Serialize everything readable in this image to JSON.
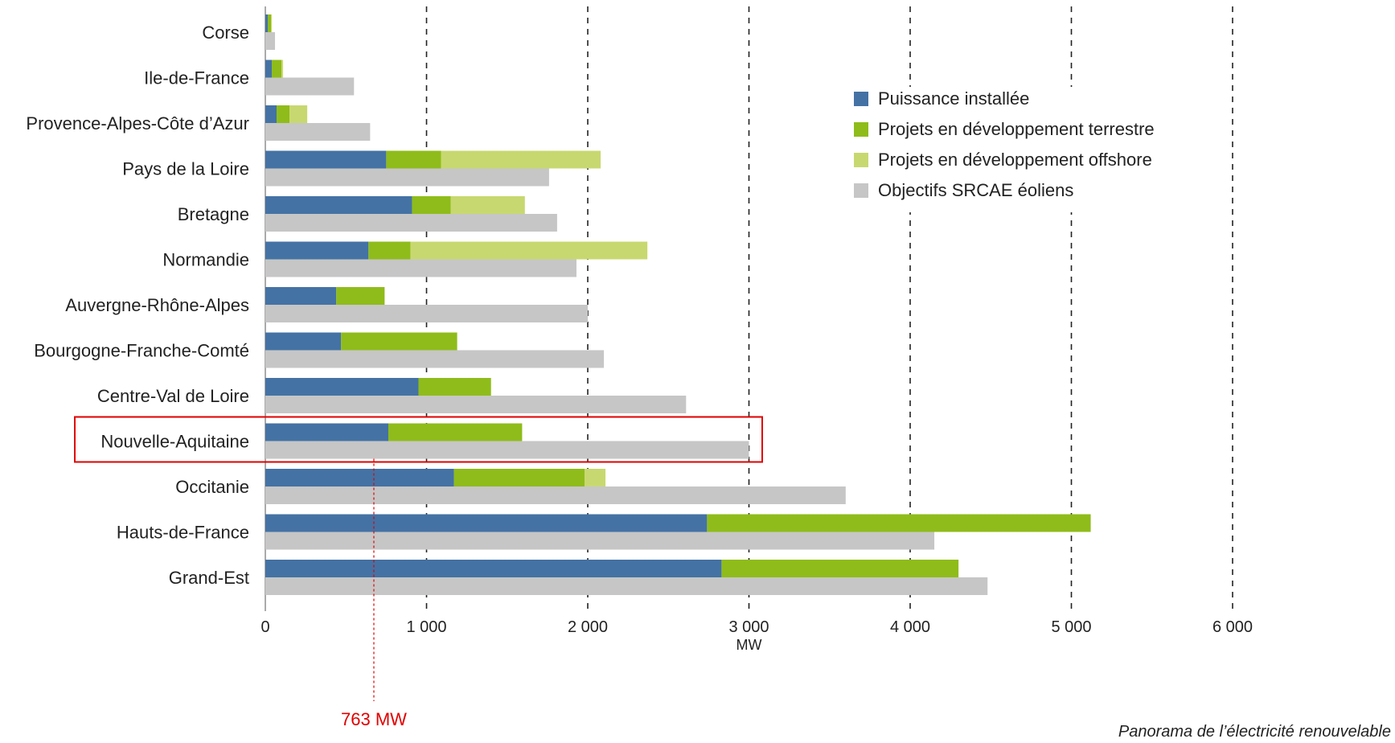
{
  "chart_data": {
    "type": "bar",
    "orientation": "horizontal",
    "stacked": true,
    "categories": [
      "Corse",
      "Ile-de-France",
      "Provence-Alpes-Côte d’Azur",
      "Pays de la Loire",
      "Bretagne",
      "Normandie",
      "Auvergne-Rhône-Alpes",
      "Bourgogne-Franche-Comté",
      "Centre-Val de Loire",
      "Nouvelle-Aquitaine",
      "Occitanie",
      "Hauts-de-France",
      "Grand-Est"
    ],
    "series": [
      {
        "name": "Puissance installée",
        "color": "#4472a4",
        "group": "stack",
        "values": [
          15,
          40,
          70,
          750,
          910,
          640,
          440,
          470,
          950,
          763,
          1170,
          2740,
          2830
        ]
      },
      {
        "name": "Projets en développement terrestre",
        "color": "#8fbc1a",
        "group": "stack",
        "values": [
          20,
          60,
          80,
          340,
          240,
          260,
          300,
          720,
          450,
          830,
          810,
          2380,
          1470
        ]
      },
      {
        "name": "Projets en développement offshore",
        "color": "#c8d870",
        "group": "stack",
        "values": [
          5,
          10,
          110,
          990,
          460,
          1470,
          0,
          0,
          0,
          0,
          130,
          0,
          0
        ]
      },
      {
        "name": "Objectifs SRCAE éoliens",
        "color": "#c6c6c6",
        "group": "separate",
        "values": [
          60,
          550,
          650,
          1760,
          1810,
          1930,
          2000,
          2100,
          2610,
          3000,
          3600,
          4150,
          4480
        ]
      }
    ],
    "xlim": [
      0,
      6000
    ],
    "xticks": [
      0,
      1000,
      2000,
      3000,
      4000,
      5000,
      6000
    ],
    "xtick_labels": [
      "0",
      "1 000",
      "2 000",
      "3 000",
      "4 000",
      "5 000",
      "6 000"
    ],
    "xlabel": "MW",
    "title": "",
    "grid": "vertical dashed",
    "legend_position": "top-right",
    "highlight": {
      "category": "Nouvelle-Aquitaine",
      "color": "#e00000"
    },
    "annotation": {
      "text": "763 MW",
      "value": 763,
      "color": "#e00000"
    }
  },
  "source_text": "Panorama de l’électricité renouvelable"
}
